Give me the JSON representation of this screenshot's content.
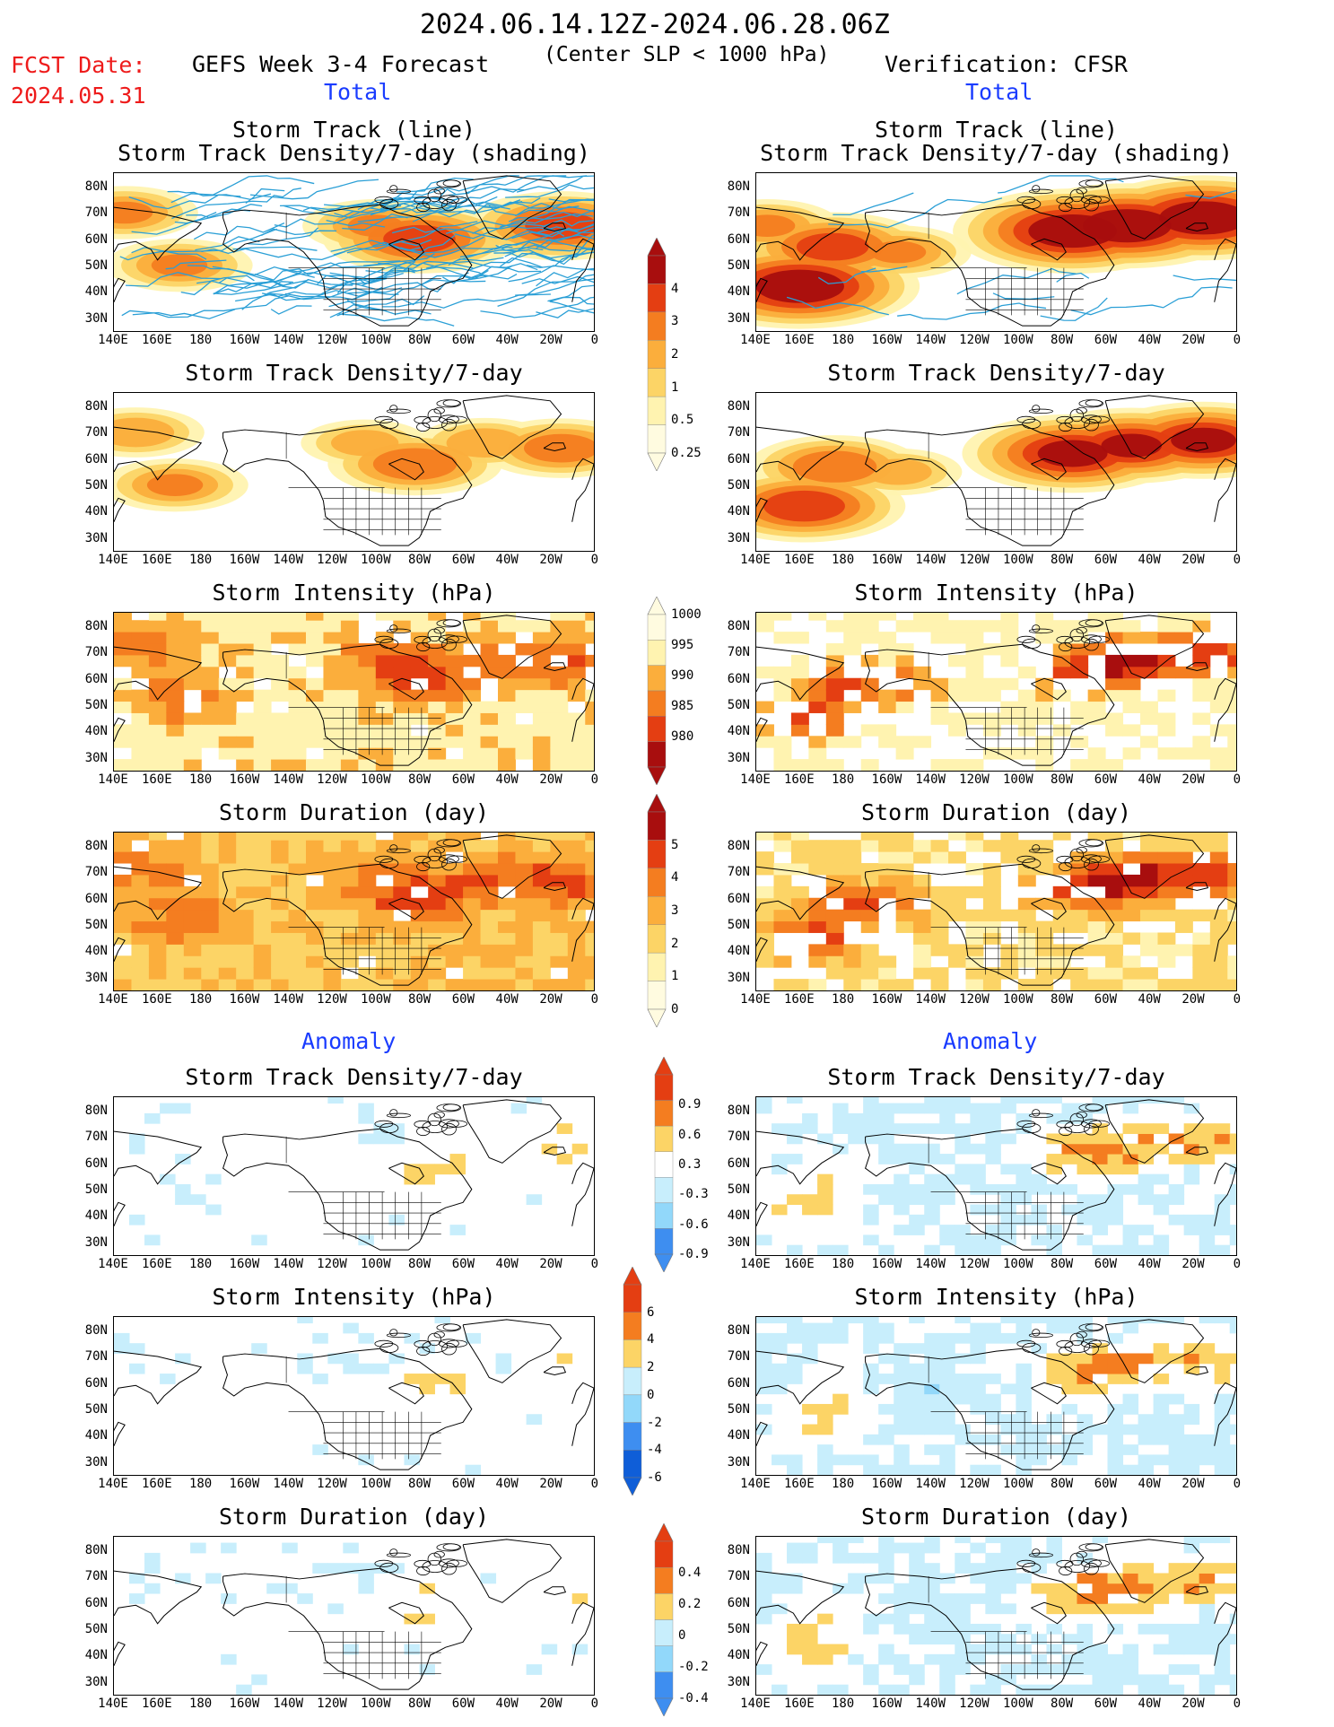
{
  "header": {
    "period": "2024.06.14.12Z-2024.06.28.06Z",
    "criterion": "(Center SLP < 1000 hPa)",
    "fcst_label": "FCST Date:",
    "fcst_date": "2024.05.31",
    "forecast_title": "GEFS Week 3-4 Forecast",
    "verification_title": "Verification: CFSR",
    "total_label": "Total",
    "anomaly_label": "Anomaly"
  },
  "panel_titles": {
    "track_line": "Storm Track (line)",
    "track_shading": "Storm Track Density/7-day (shading)",
    "density": "Storm Track Density/7-day",
    "intensity": "Storm Intensity (hPa)",
    "duration": "Storm Duration (day)"
  },
  "axes": {
    "lat_ticks": [
      "80N",
      "70N",
      "60N",
      "50N",
      "40N",
      "30N"
    ],
    "lon_ticks": [
      "140E",
      "160E",
      "180",
      "160W",
      "140W",
      "120W",
      "100W",
      "80W",
      "60W",
      "40W",
      "20W",
      "0"
    ]
  },
  "colorbars": {
    "density": [
      "4",
      "3",
      "2",
      "1",
      "0.5",
      "0.25"
    ],
    "intensity": [
      "1000",
      "995",
      "990",
      "985",
      "980"
    ],
    "duration": [
      "5",
      "4",
      "3",
      "2",
      "1",
      "0"
    ],
    "density_anomaly": [
      "0.9",
      "0.6",
      "0.3",
      "-0.3",
      "-0.6",
      "-0.9"
    ],
    "intensity_anomaly": [
      "6",
      "4",
      "2",
      "0",
      "-2",
      "-4",
      "-6"
    ],
    "duration_anomaly": [
      "0.4",
      "0.2",
      "0",
      "-0.2",
      "-0.4"
    ]
  },
  "colors": {
    "yellow_light": "#fff3b0",
    "yellow": "#fcd466",
    "orange_light": "#fbae3c",
    "orange": "#f47d20",
    "red": "#e43e12",
    "dark_red": "#a80e0e",
    "blue_pale": "#c8eefc",
    "blue_light": "#92d8fa",
    "blue": "#3e8ef0",
    "blue_dark": "#0f5ed8",
    "track_line": "#2a9fd6"
  },
  "chart_data": [
    {
      "type": "heatmap",
      "title": "Storm Track (line) / Storm Track Density/7-day (shading)",
      "source": "GEFS Week 3-4 Forecast",
      "group": "Total",
      "lat_range": [
        25,
        85
      ],
      "lon_range": [
        140,
        360
      ],
      "colorbar": [
        0.25,
        0.5,
        1,
        2,
        3,
        4
      ],
      "hotspots": [
        [
          170,
          50,
          2
        ],
        [
          145,
          70,
          2
        ],
        [
          280,
          60,
          3
        ],
        [
          345,
          65,
          3
        ],
        [
          260,
          65,
          2
        ]
      ],
      "track_lines": true
    },
    {
      "type": "heatmap",
      "title": "Storm Track (line) / Storm Track Density/7-day (shading)",
      "source": "Verification: CFSR",
      "group": "Total",
      "lat_range": [
        25,
        85
      ],
      "lon_range": [
        140,
        360
      ],
      "colorbar": [
        0.25,
        0.5,
        1,
        2,
        3,
        4
      ],
      "hotspots": [
        [
          160,
          42,
          4
        ],
        [
          175,
          57,
          3
        ],
        [
          145,
          65,
          2
        ],
        [
          205,
          55,
          2
        ],
        [
          285,
          63,
          4
        ],
        [
          310,
          65,
          4
        ],
        [
          345,
          68,
          4
        ]
      ],
      "track_lines": true
    },
    {
      "type": "heatmap",
      "title": "Storm Track Density/7-day",
      "source": "GEFS Week 3-4 Forecast",
      "group": "Total",
      "colorbar": [
        0.25,
        0.5,
        1,
        2,
        3,
        4
      ]
    },
    {
      "type": "heatmap",
      "title": "Storm Track Density/7-day",
      "source": "Verification: CFSR",
      "group": "Total",
      "colorbar": [
        0.25,
        0.5,
        1,
        2,
        3,
        4
      ]
    },
    {
      "type": "heatmap",
      "title": "Storm Intensity (hPa)",
      "source": "GEFS Week 3-4 Forecast",
      "group": "Total",
      "colorbar": [
        1000,
        995,
        990,
        985,
        980
      ]
    },
    {
      "type": "heatmap",
      "title": "Storm Intensity (hPa)",
      "source": "Verification: CFSR",
      "group": "Total",
      "colorbar": [
        1000,
        995,
        990,
        985,
        980
      ]
    },
    {
      "type": "heatmap",
      "title": "Storm Duration (day)",
      "source": "GEFS Week 3-4 Forecast",
      "group": "Total",
      "colorbar": [
        0,
        1,
        2,
        3,
        4,
        5
      ]
    },
    {
      "type": "heatmap",
      "title": "Storm Duration (day)",
      "source": "Verification: CFSR",
      "group": "Total",
      "colorbar": [
        0,
        1,
        2,
        3,
        4,
        5
      ]
    },
    {
      "type": "heatmap",
      "title": "Storm Track Density/7-day",
      "source": "GEFS Week 3-4 Forecast",
      "group": "Anomaly",
      "colorbar": [
        -0.9,
        -0.6,
        -0.3,
        0.3,
        0.6,
        0.9
      ]
    },
    {
      "type": "heatmap",
      "title": "Storm Track Density/7-day",
      "source": "Verification: CFSR",
      "group": "Anomaly",
      "colorbar": [
        -0.9,
        -0.6,
        -0.3,
        0.3,
        0.6,
        0.9
      ]
    },
    {
      "type": "heatmap",
      "title": "Storm Intensity (hPa)",
      "source": "GEFS Week 3-4 Forecast",
      "group": "Anomaly",
      "colorbar": [
        -6,
        -4,
        -2,
        0,
        2,
        4,
        6
      ]
    },
    {
      "type": "heatmap",
      "title": "Storm Intensity (hPa)",
      "source": "Verification: CFSR",
      "group": "Anomaly",
      "colorbar": [
        -6,
        -4,
        -2,
        0,
        2,
        4,
        6
      ]
    },
    {
      "type": "heatmap",
      "title": "Storm Duration (day)",
      "source": "GEFS Week 3-4 Forecast",
      "group": "Anomaly",
      "colorbar": [
        -0.4,
        -0.2,
        0,
        0.2,
        0.4
      ]
    },
    {
      "type": "heatmap",
      "title": "Storm Duration (day)",
      "source": "Verification: CFSR",
      "group": "Anomaly",
      "colorbar": [
        -0.4,
        -0.2,
        0,
        0.2,
        0.4
      ]
    }
  ]
}
